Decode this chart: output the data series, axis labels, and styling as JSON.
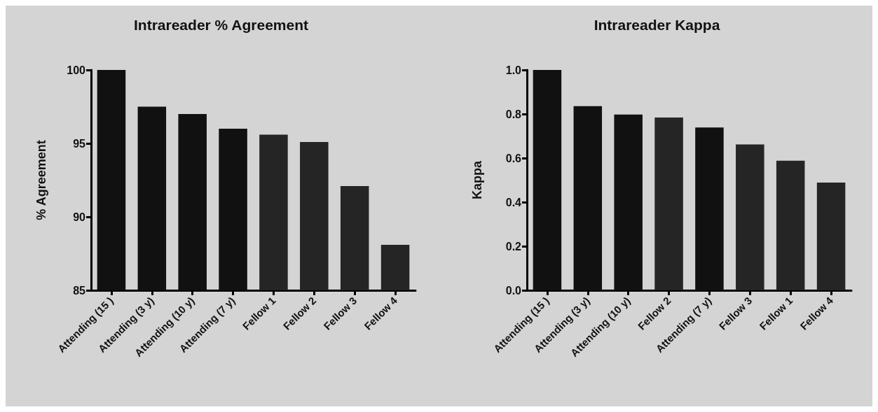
{
  "chart_data": [
    {
      "type": "bar",
      "title": "Intrareader % Agreement",
      "ylabel": "% Agreement",
      "categories": [
        "Attending (15 )",
        "Attending (3 y)",
        "Attending (10 y)",
        "Attending (7 y)",
        "Fellow 1",
        "Fellow 2",
        "Fellow 3",
        "Fellow 4"
      ],
      "values": [
        100,
        97.5,
        97.0,
        96.0,
        95.6,
        95.1,
        92.1,
        88.1
      ],
      "colors": [
        "#111111",
        "#111111",
        "#111111",
        "#111111",
        "#252525",
        "#252525",
        "#252525",
        "#252525"
      ],
      "ylim": [
        85,
        100
      ],
      "yticks": [
        85,
        90,
        95,
        100
      ]
    },
    {
      "type": "bar",
      "title": "Intrareader Kappa",
      "ylabel": "Kappa",
      "categories": [
        "Attending (15 )",
        "Attending (3 y)",
        "Attending (10 y)",
        "Fellow 2",
        "Attending (7 y)",
        "Fellow 3",
        "Fellow 1",
        "Fellow 4"
      ],
      "values": [
        1.0,
        0.836,
        0.798,
        0.784,
        0.739,
        0.662,
        0.588,
        0.489
      ],
      "colors": [
        "#111111",
        "#111111",
        "#111111",
        "#252525",
        "#111111",
        "#252525",
        "#252525",
        "#252525"
      ],
      "ylim": [
        0,
        1
      ],
      "yticks": [
        {
          "value": 0,
          "label": "0.0"
        },
        0.2,
        0.4,
        0.6,
        0.8,
        {
          "value": 1,
          "label": "1.0"
        }
      ]
    }
  ]
}
